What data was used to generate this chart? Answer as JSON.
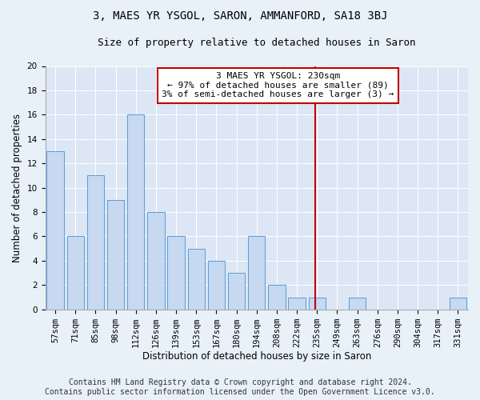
{
  "title": "3, MAES YR YSGOL, SARON, AMMANFORD, SA18 3BJ",
  "subtitle": "Size of property relative to detached houses in Saron",
  "xlabel": "Distribution of detached houses by size in Saron",
  "ylabel": "Number of detached properties",
  "bar_labels": [
    "57sqm",
    "71sqm",
    "85sqm",
    "98sqm",
    "112sqm",
    "126sqm",
    "139sqm",
    "153sqm",
    "167sqm",
    "180sqm",
    "194sqm",
    "208sqm",
    "222sqm",
    "235sqm",
    "249sqm",
    "263sqm",
    "276sqm",
    "290sqm",
    "304sqm",
    "317sqm",
    "331sqm"
  ],
  "bar_values": [
    13,
    6,
    11,
    9,
    16,
    8,
    6,
    5,
    4,
    3,
    6,
    2,
    1,
    1,
    0,
    1,
    0,
    0,
    0,
    0,
    1
  ],
  "bar_color": "#c6d9f0",
  "bar_edgecolor": "#5b9bd5",
  "ylim": [
    0,
    20
  ],
  "yticks": [
    0,
    2,
    4,
    6,
    8,
    10,
    12,
    14,
    16,
    18,
    20
  ],
  "vline_pos": 12.925,
  "vline_color": "#c00000",
  "annotation_text": "3 MAES YR YSGOL: 230sqm\n← 97% of detached houses are smaller (89)\n3% of semi-detached houses are larger (3) →",
  "footer1": "Contains HM Land Registry data © Crown copyright and database right 2024.",
  "footer2": "Contains public sector information licensed under the Open Government Licence v3.0.",
  "background_color": "#e8f0f8",
  "plot_background_color": "#dce6f5",
  "grid_color": "#ffffff",
  "title_fontsize": 10,
  "subtitle_fontsize": 9,
  "axis_label_fontsize": 8.5,
  "tick_fontsize": 7.5,
  "annotation_fontsize": 8,
  "footer_fontsize": 7
}
